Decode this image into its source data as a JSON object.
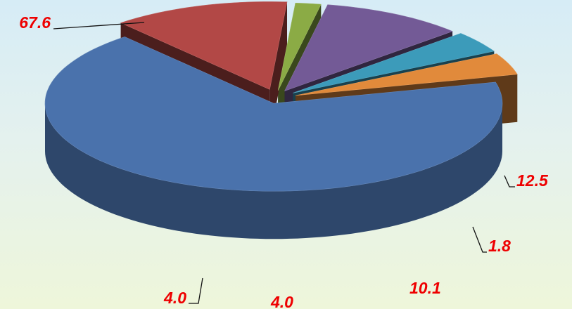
{
  "chart_data": {
    "type": "pie",
    "style": "3d-exploded",
    "title": "",
    "slices": [
      {
        "value": 67.6,
        "label": "67.6",
        "color": "#4a72ac"
      },
      {
        "value": 12.5,
        "label": "12.5",
        "color": "#b24846"
      },
      {
        "value": 1.8,
        "label": "1.8",
        "color": "#8bab45"
      },
      {
        "value": 10.1,
        "label": "10.1",
        "color": "#735a96"
      },
      {
        "value": 4.0,
        "label": "4.0",
        "color": "#3c9bba"
      },
      {
        "value": 4.0,
        "label": "4.0",
        "color": "#e18a3b"
      }
    ],
    "label_color": "#ee0000",
    "legend": "none"
  }
}
